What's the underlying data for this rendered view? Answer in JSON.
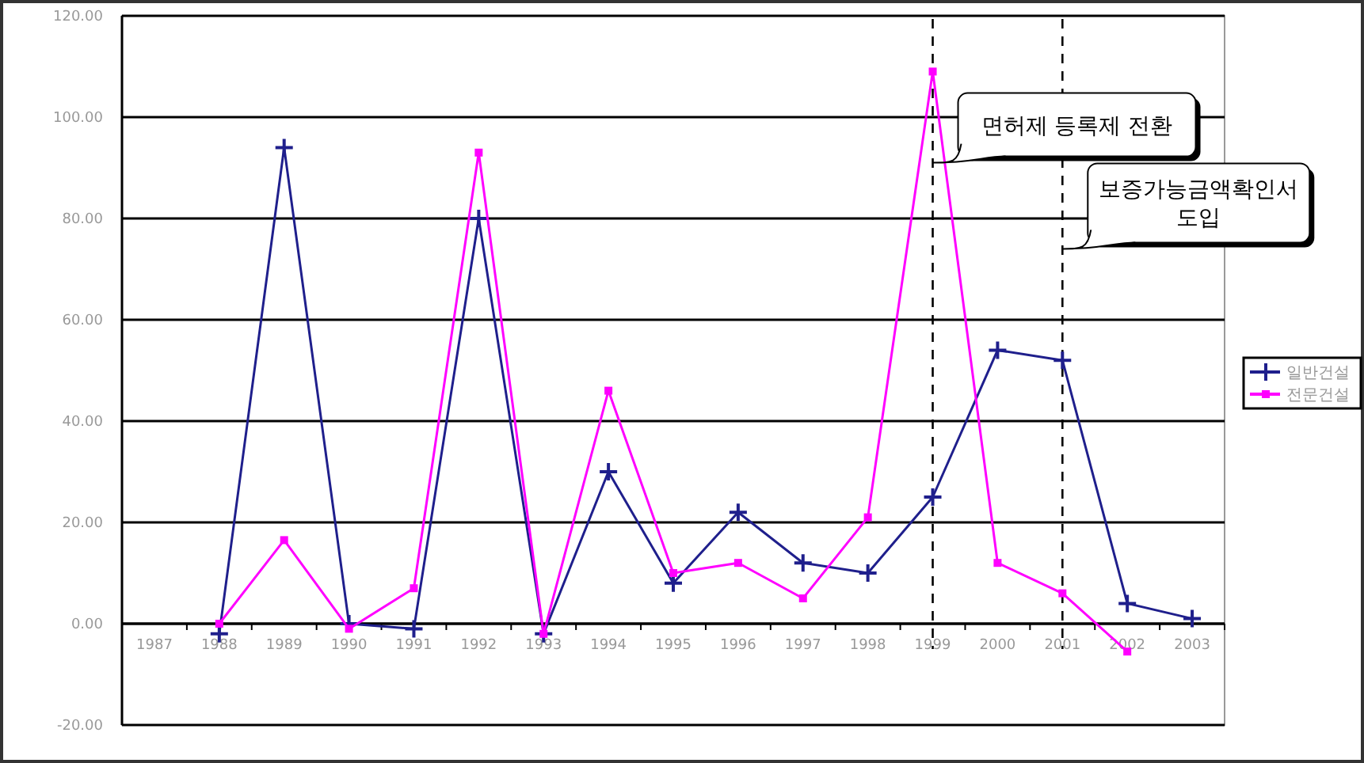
{
  "chart_data": {
    "type": "line",
    "categories": [
      "1987",
      "1988",
      "1989",
      "1990",
      "1991",
      "1992",
      "1993",
      "1994",
      "1995",
      "1996",
      "1997",
      "1998",
      "1999",
      "2000",
      "2001",
      "2002",
      "2003"
    ],
    "series": [
      {
        "name": "일반건설",
        "color": "#1f1f8c",
        "marker": "cross",
        "values": [
          null,
          -2,
          94,
          0,
          -1,
          80,
          -2,
          30,
          8,
          22,
          12,
          10,
          25,
          54,
          52,
          4,
          1
        ]
      },
      {
        "name": "전문건설",
        "color": "#ff00ff",
        "marker": "square",
        "values": [
          null,
          0,
          16.5,
          -1,
          7,
          93,
          -2,
          46,
          10,
          12,
          5,
          21,
          109,
          12,
          6,
          -5.5,
          null
        ]
      }
    ],
    "ylim": [
      -20,
      120
    ],
    "yticks": [
      {
        "value": -20,
        "label": "-20.00"
      },
      {
        "value": 0,
        "label": "0.00"
      },
      {
        "value": 20,
        "label": "20.00"
      },
      {
        "value": 40,
        "label": "40.00"
      },
      {
        "value": 60,
        "label": "60.00"
      },
      {
        "value": 80,
        "label": "80.00"
      },
      {
        "value": 100,
        "label": "100.00"
      },
      {
        "value": 120,
        "label": "120.00"
      }
    ],
    "grid": "y",
    "legend": "right",
    "line_style": "solid",
    "ref_lines": [
      {
        "axis": "x",
        "value": "1999",
        "line_style": "dashed",
        "color": "#000000"
      },
      {
        "axis": "x",
        "value": "2001",
        "line_style": "dashed",
        "color": "#000000"
      }
    ],
    "annotations": [
      {
        "text": "면허제 등록제 전환",
        "x": "1999",
        "y": 91
      },
      {
        "text": "보증가능금액확인서 도입",
        "x": "2001",
        "y": 74
      }
    ]
  }
}
